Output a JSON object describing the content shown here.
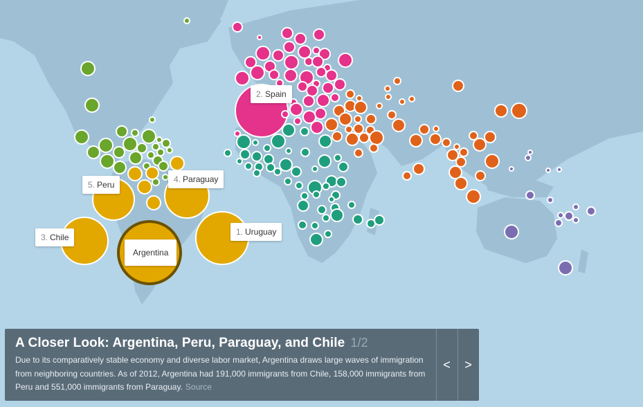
{
  "colors": {
    "ocean": "#b4d5e8",
    "land": "#9fc0d4",
    "americas": "#6aa52c",
    "south_america": "#e3a800",
    "europe": "#e5328a",
    "africa": "#1f9e7e",
    "asia": "#e0621a",
    "oceania": "#7b6eb0",
    "highlight_ring": "#6b5100"
  },
  "labels": {
    "spain": {
      "rank": "2.",
      "name": "Spain"
    },
    "uruguay": {
      "rank": "1.",
      "name": "Uruguay"
    },
    "chile": {
      "rank": "3.",
      "name": "Chile"
    },
    "paraguay": {
      "rank": "4.",
      "name": "Paraguay"
    },
    "peru": {
      "rank": "5.",
      "name": "Peru"
    },
    "argentina": {
      "name": "Argentina"
    }
  },
  "panel": {
    "title": "A Closer Look: Argentina, Peru, Paraguay, and Chile",
    "page": "1/2",
    "text": "Due to its comparatively stable economy and diverse labor market, Argentina draws large waves of immigration from neighboring countries. As of 2012, Argentina had 191,000 immigrants from Chile, 158,000 immigrants from Peru and 551,000 immigrants from Paraguay.",
    "source_label": "Source",
    "prev_icon": "<",
    "next_icon": ">"
  }
}
